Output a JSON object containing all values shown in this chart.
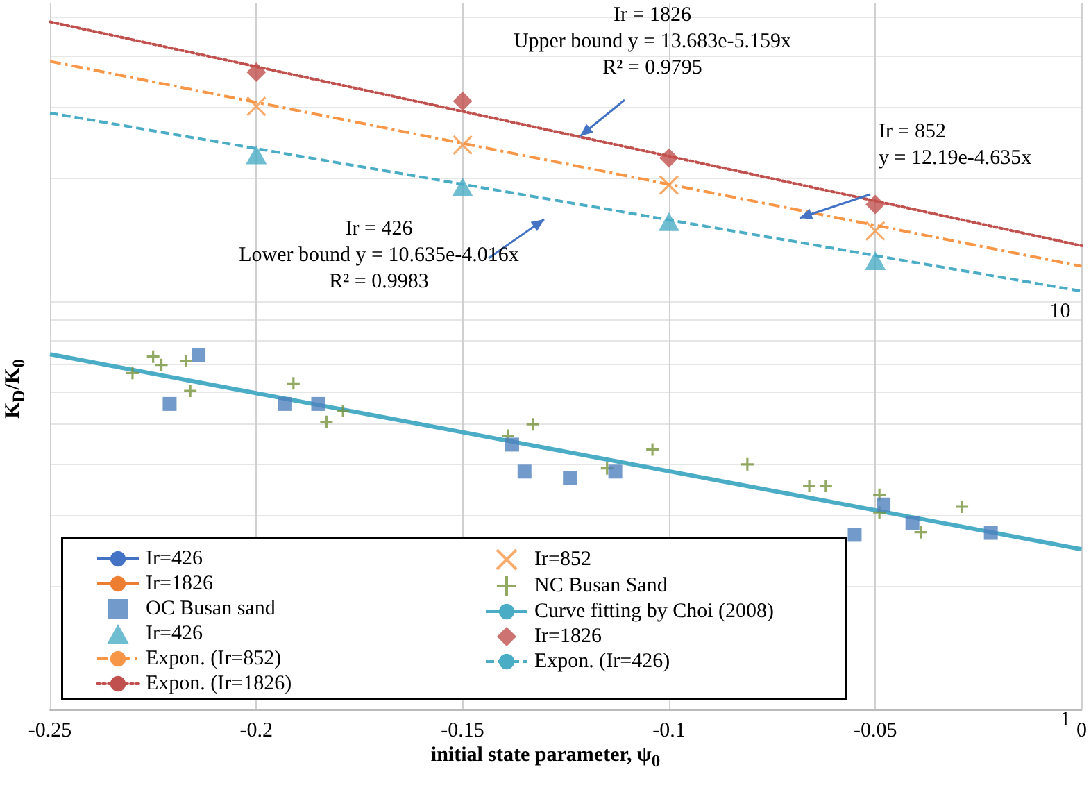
{
  "chart_data": {
    "type": "scatter",
    "xlabel": "initial state parameter, ψ$_{0}$",
    "ylabel": "K$_{D}$/K$_{0}$",
    "xlim": [
      -0.25,
      0
    ],
    "xticks": [
      -0.25,
      -0.2,
      -0.15,
      -0.1,
      -0.05,
      0
    ],
    "ylim": [
      1,
      54
    ],
    "log": "y",
    "yticks": [
      1,
      {
        "value": 2,
        "label": null
      },
      {
        "value": 3,
        "label": null
      },
      {
        "value": 4,
        "label": null
      },
      {
        "value": 5,
        "label": null
      },
      {
        "value": 6,
        "label": null
      },
      {
        "value": 7,
        "label": null
      },
      {
        "value": 8,
        "label": null
      },
      {
        "value": 9,
        "label": null
      },
      10,
      {
        "value": 20,
        "label": null
      },
      {
        "value": 30,
        "label": null
      },
      {
        "value": 40,
        "label": null
      },
      {
        "value": 50,
        "label": null
      }
    ],
    "grid": true,
    "legend": "bottom left",
    "annotations": [
      "Ir = 1826\nUpper bound y = 13.683e-5.159x\nR² = 0.9795",
      "Ir = 852\ny = 12.19e-4.635x",
      "Ir = 426\nLower bound y = 10.635e-4.016x\nR² = 0.9983"
    ],
    "series": [
      {
        "name": "Ir=426",
        "type": "line",
        "marker": "none",
        "color": "#4472c4"
      },
      {
        "name": "Ir=852",
        "marker": "x",
        "color": "#f79646",
        "x": [
          -0.2,
          -0.15,
          -0.1,
          -0.05
        ],
        "values": [
          30.1,
          24.2,
          19.3,
          14.9
        ]
      },
      {
        "name": "Ir=1826",
        "type": "line",
        "marker": "none",
        "color": "#ed7d31"
      },
      {
        "name": "NC Busan Sand",
        "marker": "cross",
        "color": "#77933c",
        "x": [
          -0.23,
          -0.225,
          -0.223,
          -0.217,
          -0.216,
          -0.191,
          -0.183,
          -0.179,
          -0.139,
          -0.133,
          -0.115,
          -0.104,
          -0.081,
          -0.066,
          -0.062,
          -0.049,
          -0.049,
          -0.039,
          -0.029
        ],
        "values": [
          6.68,
          7.33,
          6.99,
          7.15,
          6.04,
          6.3,
          5.07,
          5.39,
          4.69,
          5.0,
          3.9,
          4.34,
          3.99,
          3.53,
          3.53,
          3.36,
          3.04,
          2.72,
          3.14
        ]
      },
      {
        "name": "OC Busan sand",
        "marker": "square",
        "color": "#4f81bd",
        "x": [
          -0.214,
          -0.221,
          -0.193,
          -0.185,
          -0.138,
          -0.135,
          -0.124,
          -0.113,
          -0.055,
          -0.048,
          -0.041,
          -0.022
        ],
        "values": [
          7.39,
          5.61,
          5.61,
          5.61,
          4.46,
          3.83,
          3.69,
          3.83,
          2.68,
          3.18,
          2.86,
          2.71
        ]
      },
      {
        "name": "Curve fitting by Choi (2008)",
        "type": "line",
        "marker": "none",
        "line_style": "solid",
        "color": "#4bacc6",
        "x": [
          -0.25,
          0
        ],
        "values": [
          7.43,
          2.47
        ]
      },
      {
        "name": "Ir=426",
        "marker": "triangle",
        "color": "#4bacc6",
        "x": [
          -0.2,
          -0.15,
          -0.1,
          -0.05
        ],
        "values": [
          22.9,
          19.1,
          15.7,
          12.6
        ]
      },
      {
        "name": "Ir=1826",
        "marker": "diamond",
        "color": "#c0504d",
        "x": [
          -0.2,
          -0.15,
          -0.1,
          -0.05
        ],
        "values": [
          36.5,
          31.0,
          22.5,
          17.3
        ]
      },
      {
        "name": "Expon. (Ir=852)",
        "type": "line",
        "marker": "none",
        "line_style": "dashdot",
        "color": "#f79646",
        "x": [
          -0.25,
          0
        ],
        "values": [
          38.8,
          12.2
        ]
      },
      {
        "name": "Expon. (Ir=426)",
        "type": "line",
        "marker": "none",
        "line_style": "dashed",
        "color": "#4bacc6",
        "x": [
          -0.25,
          0
        ],
        "values": [
          29.0,
          10.6
        ]
      },
      {
        "name": "Expon. (Ir=1826)",
        "type": "line",
        "marker": "none",
        "line_style": "dotted",
        "color": "#c0504d",
        "x": [
          -0.25,
          0
        ],
        "values": [
          48.5,
          13.7
        ]
      }
    ]
  }
}
